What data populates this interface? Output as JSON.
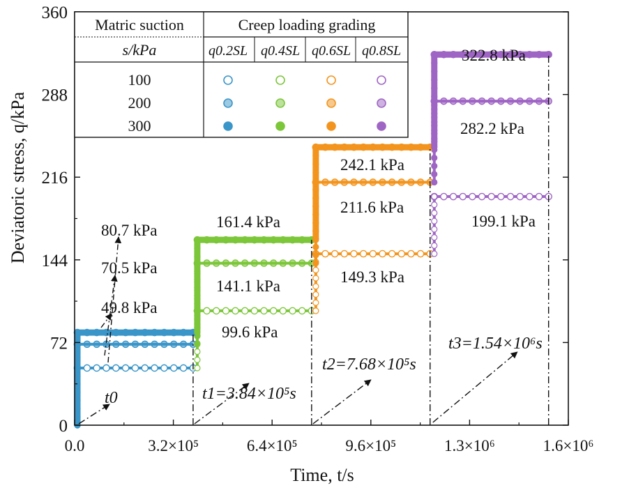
{
  "chart_data": {
    "type": "line",
    "title": "",
    "xlabel": "Time, t/s",
    "ylabel": "Deviatoric stress, q/kPa",
    "xlim": [
      0,
      1600000
    ],
    "ylim": [
      0,
      360
    ],
    "x_ticks": [
      {
        "value": 0,
        "label": "0.0"
      },
      {
        "value": 320000,
        "label": "3.2×10⁵"
      },
      {
        "value": 640000,
        "label": "6.4×10⁵"
      },
      {
        "value": 960000,
        "label": "9.6×10⁵"
      },
      {
        "value": 1280000,
        "label": "1.3×10⁶"
      },
      {
        "value": 1600000,
        "label": "1.6×10⁶"
      }
    ],
    "y_ticks": [
      0,
      72,
      144,
      216,
      288,
      360
    ],
    "legend": {
      "col1_header": "Matric suction",
      "col1_subheader": "s/kPa",
      "group_header": "Creep loading grading",
      "stages": [
        "q0.2SL",
        "q0.4SL",
        "q0.6SL",
        "q0.8SL"
      ],
      "suctions": [
        "100",
        "200",
        "300"
      ]
    },
    "colors": {
      "q0.2SL": "#3a95c8",
      "q0.4SL": "#7cc63a",
      "q0.6SL": "#f2941d",
      "q0.8SL": "#9f65c4"
    },
    "stage_times": [
      0,
      384000,
      768000,
      1152000,
      1536000
    ],
    "series": [
      {
        "suction": "100",
        "values": [
          49.8,
          99.6,
          149.3,
          199.1
        ]
      },
      {
        "suction": "200",
        "values": [
          70.5,
          141.1,
          211.6,
          282.2
        ]
      },
      {
        "suction": "300",
        "values": [
          80.7,
          161.4,
          242.1,
          322.8
        ]
      }
    ],
    "annotations": [
      {
        "text": "80.7 kPa"
      },
      {
        "text": "70.5 kPa"
      },
      {
        "text": "49.8 kPa"
      },
      {
        "text": "161.4 kPa"
      },
      {
        "text": "141.1 kPa"
      },
      {
        "text": "99.6 kPa"
      },
      {
        "text": "242.1 kPa"
      },
      {
        "text": "211.6 kPa"
      },
      {
        "text": "149.3 kPa"
      },
      {
        "text": "322.8 kPa"
      },
      {
        "text": "282.2 kPa"
      },
      {
        "text": "199.1 kPa"
      }
    ],
    "time_markers": [
      {
        "label": "t0"
      },
      {
        "label": "t1=3.84×10⁵s"
      },
      {
        "label": "t2=7.68×10⁵s"
      },
      {
        "label": "t3=1.54×10⁶s"
      }
    ]
  }
}
